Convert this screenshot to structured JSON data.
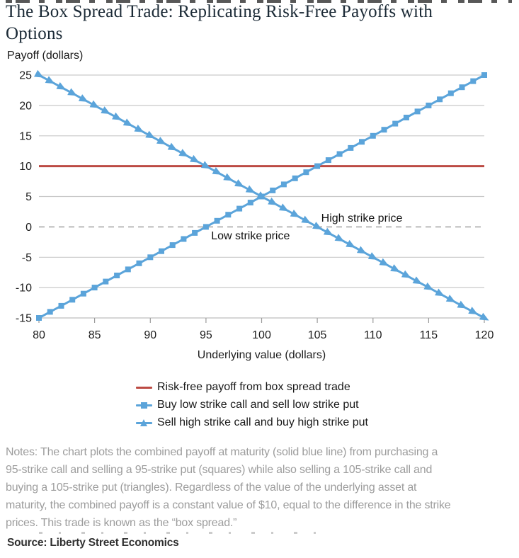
{
  "page": {
    "title": "The Box Spread Trade: Replicating Risk-Free Payoffs with\nOptions",
    "notes": "Notes: The chart plots the combined payoff at maturity (solid blue line) from purchasing a\n95-strike call and selling a 95-strike put (squares) while also selling a 105-strike call and\nbuying a 105-strike put (triangles). Regardless of the value of the underlying asset at\nmaturity, the combined payoff is a constant value of $10, equal to the difference in the strike\nprices. This trade is known as the “box spread.”",
    "source": "Source: Liberty Street Economics"
  },
  "chart_data": {
    "type": "line",
    "title": "",
    "ylabel": "Payoff (dollars)",
    "xlabel": "Underlying value (dollars)",
    "xlim": [
      80,
      120
    ],
    "ylim": [
      -15,
      25
    ],
    "x_ticks": [
      80,
      85,
      90,
      95,
      100,
      105,
      110,
      115,
      120
    ],
    "y_ticks": [
      25,
      20,
      15,
      10,
      5,
      0,
      -5,
      -10,
      -15
    ],
    "grid": true,
    "legend_position": "bottom",
    "x": [
      80,
      81,
      82,
      83,
      84,
      85,
      86,
      87,
      88,
      89,
      90,
      91,
      92,
      93,
      94,
      95,
      96,
      97,
      98,
      99,
      100,
      101,
      102,
      103,
      104,
      105,
      106,
      107,
      108,
      109,
      110,
      111,
      112,
      113,
      114,
      115,
      116,
      117,
      118,
      119,
      120
    ],
    "series": [
      {
        "name": "Risk-free payoff from box spread trade",
        "marker": "none",
        "color": "#bc4a43",
        "values": [
          10,
          10,
          10,
          10,
          10,
          10,
          10,
          10,
          10,
          10,
          10,
          10,
          10,
          10,
          10,
          10,
          10,
          10,
          10,
          10,
          10,
          10,
          10,
          10,
          10,
          10,
          10,
          10,
          10,
          10,
          10,
          10,
          10,
          10,
          10,
          10,
          10,
          10,
          10,
          10,
          10
        ]
      },
      {
        "name": "Buy low strike call and sell low strike put",
        "marker": "square",
        "color": "#5ba4da",
        "values": [
          -15,
          -14,
          -13,
          -12,
          -11,
          -10,
          -9,
          -8,
          -7,
          -6,
          -5,
          -4,
          -3,
          -2,
          -1,
          0,
          1,
          2,
          3,
          4,
          5,
          6,
          7,
          8,
          9,
          10,
          11,
          12,
          13,
          14,
          15,
          16,
          17,
          18,
          19,
          20,
          21,
          22,
          23,
          24,
          25
        ]
      },
      {
        "name": "Sell high strike call and buy high strike put",
        "marker": "triangle",
        "color": "#5ba4da",
        "values": [
          25,
          24,
          23,
          22,
          21,
          20,
          19,
          18,
          17,
          16,
          15,
          14,
          13,
          12,
          11,
          10,
          9,
          8,
          7,
          6,
          5,
          4,
          3,
          2,
          1,
          0,
          -1,
          -2,
          -3,
          -4,
          -5,
          -6,
          -7,
          -8,
          -9,
          -10,
          -11,
          -12,
          -13,
          -14,
          -15
        ]
      }
    ],
    "annotations": [
      {
        "text": "Low strike price",
        "x": 99,
        "y": -1.4
      },
      {
        "text": "High strike price",
        "x": 109,
        "y": 1.5
      }
    ],
    "strikes": {
      "low": 95,
      "high": 105,
      "box_payoff": 10
    },
    "colors": {
      "gridline": "#c9c9c9",
      "zero_dash": "#a9a9a9",
      "axis_text": "#1d1d1d"
    }
  }
}
